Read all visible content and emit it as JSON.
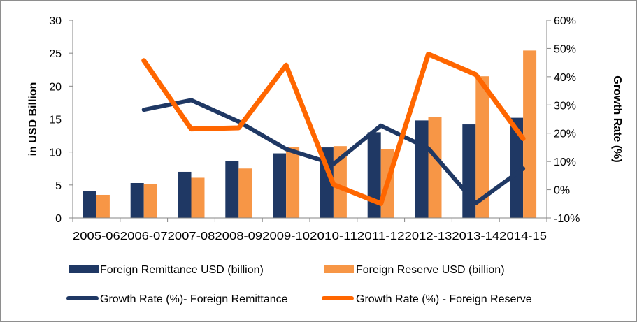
{
  "chart_data": {
    "type": "bar+line",
    "categories": [
      "2005-06",
      "2006-07",
      "2007-08",
      "2008-09",
      "2009-10",
      "2010-11",
      "2011-12",
      "2012-13",
      "2013-14",
      "2014-15"
    ],
    "bar_series": [
      {
        "name": "Foreign Remittance USD (billion)",
        "color": "#1f3864",
        "values": [
          4.1,
          5.3,
          7.0,
          8.6,
          9.8,
          10.7,
          13.0,
          14.8,
          14.2,
          15.2
        ]
      },
      {
        "name": "Foreign Reserve USD (billion)",
        "color": "#f79646",
        "values": [
          3.5,
          5.1,
          6.1,
          7.5,
          10.8,
          10.9,
          10.4,
          15.3,
          21.5,
          25.4
        ]
      }
    ],
    "line_series": [
      {
        "name": "Growth Rate (%)- Foreign Remittance",
        "color": "#1f3864",
        "values": [
          null,
          28.3,
          31.7,
          24.1,
          14.4,
          9.1,
          22.7,
          14.6,
          -4.8,
          7.5
        ]
      },
      {
        "name": "Growth Rate (%) - Foreign Reserve",
        "color": "#ff6600",
        "values": [
          null,
          45.7,
          21.5,
          21.9,
          44.1,
          1.8,
          -4.9,
          48.0,
          40.8,
          18.1
        ]
      }
    ],
    "ylabel": "in USD Billion",
    "y2label": "Growth Rate (%)",
    "ylim": [
      0,
      30
    ],
    "yticks": [
      "0",
      "5",
      "10",
      "15",
      "20",
      "25",
      "30"
    ],
    "y2lim": [
      -10,
      60
    ],
    "y2ticks": [
      "-10%",
      "0%",
      "10%",
      "20%",
      "30%",
      "40%",
      "50%",
      "60%"
    ],
    "grid": false,
    "legend_position": "bottom"
  }
}
